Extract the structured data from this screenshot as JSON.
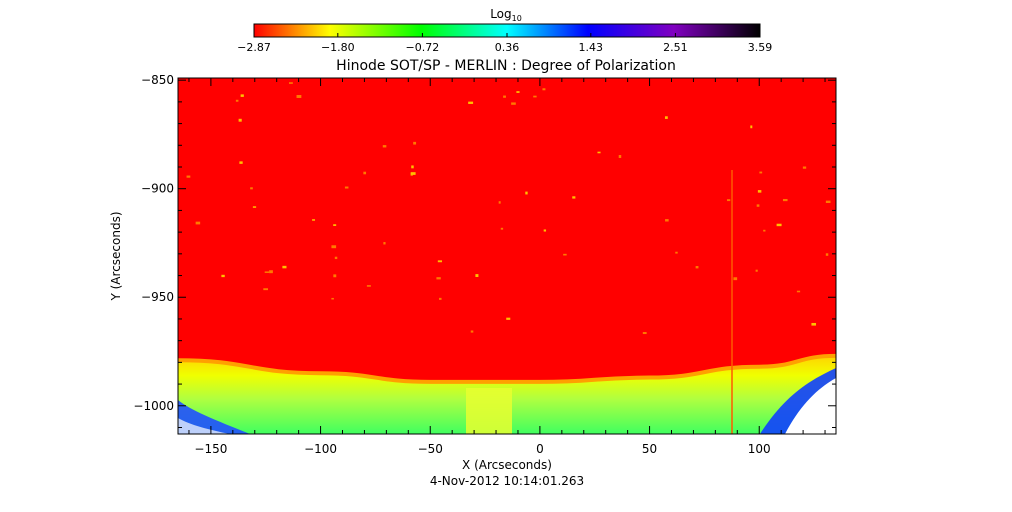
{
  "chart_data": {
    "type": "heatmap",
    "title": "Hinode SOT/SP - MERLIN : Degree of Polarization",
    "xlabel": "X (Arcseconds)",
    "ylabel": "Y (Arcseconds)",
    "timestamp": "4-Nov-2012 10:14:01.263",
    "xlim": [
      -165,
      135
    ],
    "ylim": [
      -1013,
      -849
    ],
    "x_ticks": [
      -150,
      -100,
      -50,
      0,
      50,
      100
    ],
    "x_tick_labels": [
      "−150",
      "−100",
      "−50",
      "0",
      "50",
      "100"
    ],
    "y_ticks": [
      -1000,
      -950,
      -900,
      -850
    ],
    "y_tick_labels": [
      "−1000",
      "−950",
      "−900",
      "−850"
    ],
    "colorbar": {
      "label_base": "Log",
      "label_sub": "10",
      "min": -2.87,
      "max": 3.59,
      "tick_values": [
        -2.87,
        -1.8,
        -0.72,
        0.36,
        1.43,
        2.51,
        3.59
      ],
      "tick_labels": [
        "−2.87",
        "−1.80",
        "−0.72",
        "0.36",
        "1.43",
        "2.51",
        "3.59"
      ],
      "colormap": [
        "#ff0000",
        "#ffff00",
        "#00ff00",
        "#00ffff",
        "#0000ff",
        "#8000c0",
        "#000000"
      ]
    },
    "limb_profile": {
      "description_values": "Y of limb boundary (arcsec) by X",
      "x": [
        -165,
        -100,
        -50,
        0,
        50,
        100,
        135
      ],
      "y_limb": [
        -979,
        -985,
        -989,
        -989,
        -987,
        -982,
        -977
      ]
    }
  }
}
